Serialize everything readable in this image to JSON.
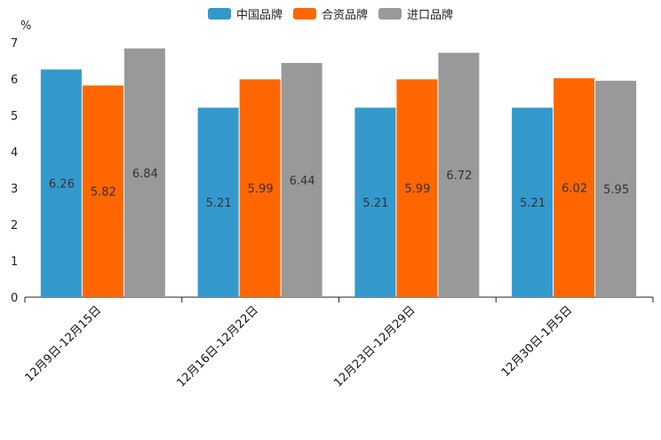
{
  "chart_data": {
    "type": "bar",
    "unit": "%",
    "categories": [
      "12月9日-12月15日",
      "12月16日-12月22日",
      "12月23日-12月29日",
      "12月30日-1月5日"
    ],
    "series": [
      {
        "name": "中国品牌",
        "color": "#3399cc",
        "values": [
          6.26,
          5.21,
          5.21,
          5.21
        ],
        "labels": [
          "6.26",
          "5.21",
          "5.21",
          "5.21"
        ]
      },
      {
        "name": "合资品牌",
        "color": "#ff6600",
        "values": [
          5.82,
          5.99,
          5.99,
          6.02
        ],
        "labels": [
          "5.82",
          "5.99",
          "5.99",
          "6.02"
        ]
      },
      {
        "name": "进口品牌",
        "color": "#999999",
        "values": [
          6.84,
          6.44,
          6.72,
          5.95
        ],
        "labels": [
          "6.84",
          "6.44",
          "6.72",
          "5.95"
        ]
      }
    ],
    "yticks": [
      "0",
      "1",
      "2",
      "3",
      "4",
      "5",
      "6",
      "7"
    ],
    "ylim": [
      0,
      7
    ],
    "legend_position": "top-center"
  }
}
